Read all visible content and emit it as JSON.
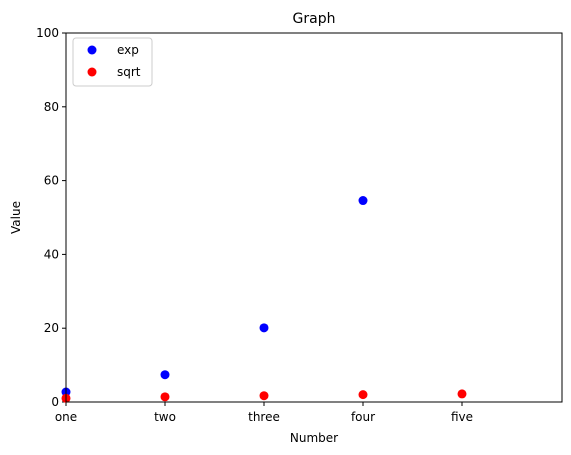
{
  "chart_data": {
    "type": "scatter",
    "title": "Graph",
    "xlabel": "Number",
    "ylabel": "Value",
    "categories": [
      "one",
      "two",
      "three",
      "four",
      "five"
    ],
    "ylim": [
      0,
      100
    ],
    "yticks": [
      0,
      20,
      40,
      60,
      80,
      100
    ],
    "grid": false,
    "legend_position": "top-left",
    "series": [
      {
        "name": "exp",
        "color": "#0000ff",
        "values": [
          2.7,
          7.4,
          20.1,
          54.6,
          null
        ]
      },
      {
        "name": "sqrt",
        "color": "#ff0000",
        "values": [
          1.0,
          1.4,
          1.7,
          2.0,
          2.2
        ]
      }
    ]
  }
}
